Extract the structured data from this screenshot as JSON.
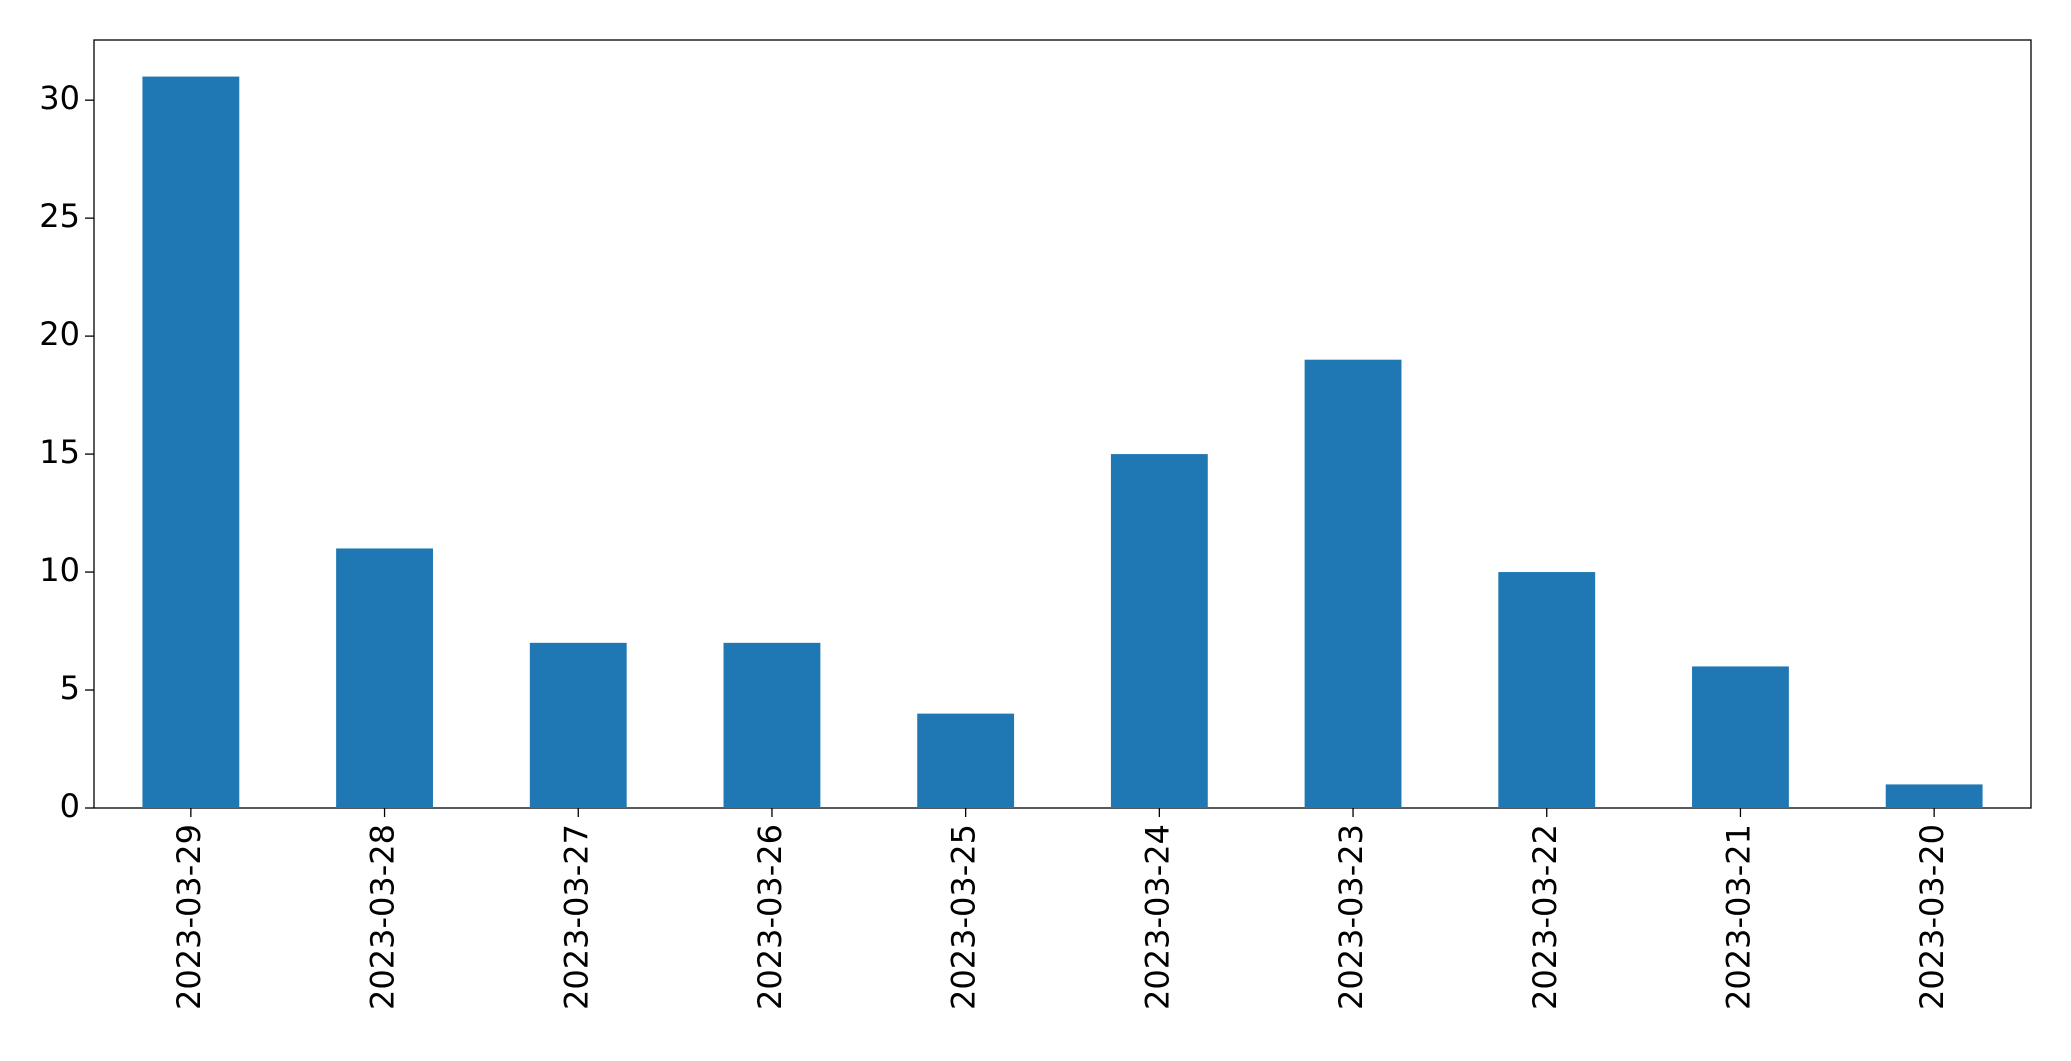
{
  "chart_data": {
    "type": "bar",
    "categories": [
      "2023-03-29",
      "2023-03-28",
      "2023-03-27",
      "2023-03-26",
      "2023-03-25",
      "2023-03-24",
      "2023-03-23",
      "2023-03-22",
      "2023-03-21",
      "2023-03-20"
    ],
    "values": [
      31,
      11,
      7,
      7,
      4,
      15,
      19,
      10,
      6,
      1
    ],
    "color": "#1f77b4",
    "ylim": [
      0,
      32.55
    ],
    "yticks": [
      0,
      5,
      10,
      15,
      20,
      25,
      30
    ],
    "grid": false
  }
}
